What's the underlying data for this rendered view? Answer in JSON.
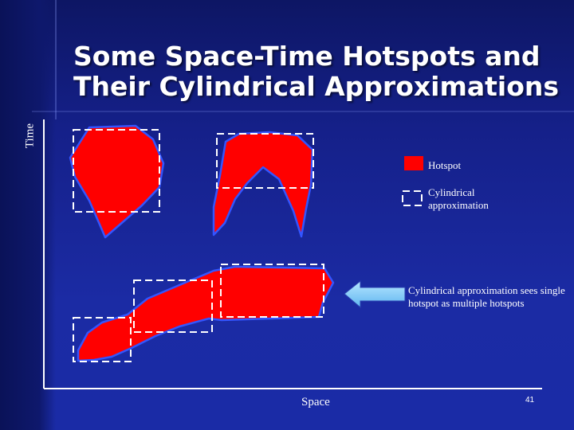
{
  "slide": {
    "title_line1": "Some Space-Time Hotspots and",
    "title_line2": "Their Cylindrical Approximations",
    "page_number": "41"
  },
  "axes": {
    "y_label": "Time",
    "x_label": "Space"
  },
  "legend": {
    "hotspot_label": "Hotspot",
    "cylindrical_label": "Cylindrical approximation"
  },
  "annotation": {
    "note": "Cylindrical approximation sees single hotspot as multiple hotspots"
  },
  "colors": {
    "hotspot_fill": "#ff0000",
    "hotspot_stroke": "#3355ff",
    "box_stroke": "#ffffff",
    "arrow_fill": "#7fd0ff"
  }
}
